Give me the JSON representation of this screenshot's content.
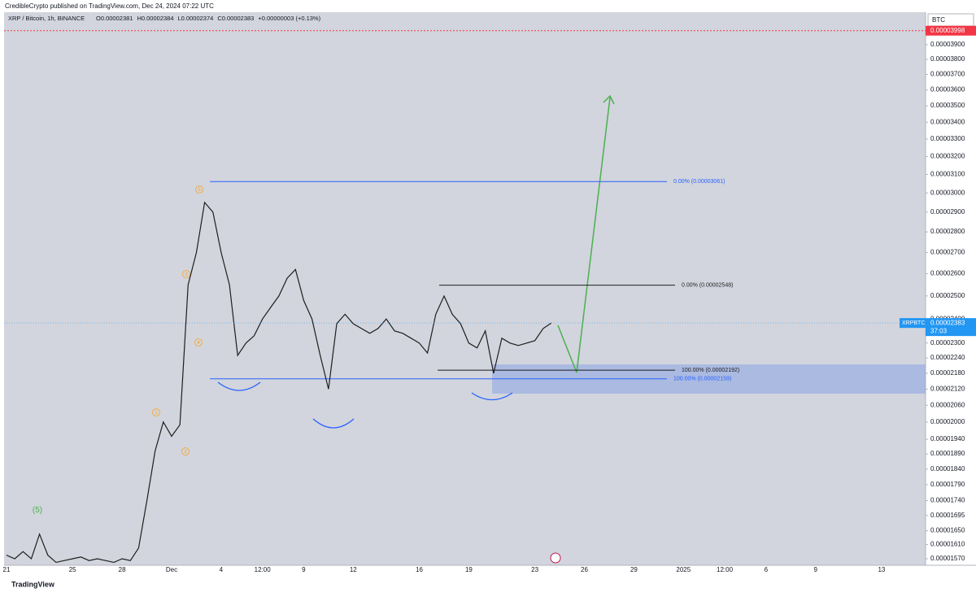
{
  "chart_data": {
    "type": "line",
    "published": "CredibleCrypto published on TradingView.com, Dec 24, 2024 07:22 UTC",
    "symbol_info": "XRP / Bitcoin, 1h, BINANCE",
    "ohlc": [
      "O0.00002381",
      "H0.00002384",
      "L0.00002374",
      "C0.00002383",
      "+0.00000003 (+0.13%)"
    ],
    "currency": "BTC",
    "brand": "TradingView",
    "color": "#1e1e1e",
    "log_scale": true,
    "categories": [
      "21",
      null,
      null,
      null,
      null,
      null,
      null,
      null,
      "25",
      null,
      null,
      null,
      null,
      null,
      "28",
      null,
      null,
      null,
      null,
      null,
      "Dec",
      null,
      null,
      null,
      null,
      null,
      "4",
      null,
      null,
      null,
      null,
      "12:00",
      null,
      null,
      null,
      null,
      "9",
      null,
      null,
      null,
      null,
      null,
      "12",
      null,
      null,
      null,
      null,
      null,
      null,
      null,
      "16",
      null,
      null,
      null,
      null,
      null,
      "19",
      null,
      null,
      null,
      null,
      null,
      null,
      null,
      "23",
      null,
      null,
      null,
      null,
      null,
      "26",
      null,
      null,
      null,
      null,
      null,
      "29",
      null,
      null,
      null,
      null,
      null,
      "2025",
      null,
      null,
      null,
      null,
      "12:00",
      null,
      null,
      null,
      null,
      "6",
      null,
      null,
      null,
      null,
      null,
      "9",
      null,
      null,
      null,
      null,
      null,
      null,
      null,
      "13",
      null,
      null,
      null,
      null,
      null
    ],
    "values": [
      1.58e-05,
      1.57e-05,
      1.59e-05,
      1.57e-05,
      1.64e-05,
      1.58e-05,
      1.56e-05,
      1.565e-05,
      1.57e-05,
      1.575e-05,
      1.565e-05,
      1.57e-05,
      1.565e-05,
      1.56e-05,
      1.57e-05,
      1.565e-05,
      1.6e-05,
      1.74e-05,
      1.9e-05,
      2e-05,
      1.95e-05,
      1.99e-05,
      2.55e-05,
      2.7e-05,
      2.95e-05,
      2.9e-05,
      2.7e-05,
      2.55e-05,
      2.25e-05,
      2.3e-05,
      2.33e-05,
      2.4e-05,
      2.45e-05,
      2.5e-05,
      2.58e-05,
      2.62e-05,
      2.48e-05,
      2.4e-05,
      2.25e-05,
      2.12e-05,
      2.38e-05,
      2.42e-05,
      2.38e-05,
      2.36e-05,
      2.34e-05,
      2.36e-05,
      2.4e-05,
      2.35e-05,
      2.34e-05,
      2.32e-05,
      2.3e-05,
      2.26e-05,
      2.42e-05,
      2.5e-05,
      2.42e-05,
      2.38e-05,
      2.3e-05,
      2.28e-05,
      2.35e-05,
      2.18e-05,
      2.32e-05,
      2.3e-05,
      2.29e-05,
      2.3e-05,
      2.31e-05,
      2.36e-05,
      2.383e-05,
      null,
      null,
      null,
      null,
      null,
      null,
      null,
      null,
      null,
      null,
      null,
      null,
      null,
      null,
      null,
      null,
      null,
      null,
      null,
      null,
      null,
      null,
      null,
      null,
      null,
      null,
      null,
      null,
      null,
      null,
      null,
      null,
      null,
      null,
      null,
      null,
      null,
      null,
      null,
      null,
      null,
      null,
      null,
      null,
      null
    ],
    "ylim": [
      1.552e-05,
      4.131e-05
    ],
    "yticks": [
      {
        "value": 3.9e-05,
        "label": "0.00003900"
      },
      {
        "value": 3.8e-05,
        "label": "0.00003800"
      },
      {
        "value": 3.7e-05,
        "label": "0.00003700"
      },
      {
        "value": 3.6e-05,
        "label": "0.00003600"
      },
      {
        "value": 3.5e-05,
        "label": "0.00003500"
      },
      {
        "value": 3.4e-05,
        "label": "0.00003400"
      },
      {
        "value": 3.3e-05,
        "label": "0.00003300"
      },
      {
        "value": 3.2e-05,
        "label": "0.00003200"
      },
      {
        "value": 3.1e-05,
        "label": "0.00003100"
      },
      {
        "value": 3e-05,
        "label": "0.00003000"
      },
      {
        "value": 2.9e-05,
        "label": "0.00002900"
      },
      {
        "value": 2.8e-05,
        "label": "0.00002800"
      },
      {
        "value": 2.7e-05,
        "label": "0.00002700"
      },
      {
        "value": 2.6e-05,
        "label": "0.00002600"
      },
      {
        "value": 2.5e-05,
        "label": "0.00002500"
      },
      {
        "value": 2.4e-05,
        "label": "0.00002400"
      },
      {
        "value": 2.3e-05,
        "label": "0.00002300"
      },
      {
        "value": 2.24e-05,
        "label": "0.00002240"
      },
      {
        "value": 2.18e-05,
        "label": "0.00002180"
      },
      {
        "value": 2.12e-05,
        "label": "0.00002120"
      },
      {
        "value": 2.06e-05,
        "label": "0.00002060"
      },
      {
        "value": 2e-05,
        "label": "0.00002000"
      },
      {
        "value": 1.94e-05,
        "label": "0.00001940"
      },
      {
        "value": 1.89e-05,
        "label": "0.00001890"
      },
      {
        "value": 1.84e-05,
        "label": "0.00001840"
      },
      {
        "value": 1.79e-05,
        "label": "0.00001790"
      },
      {
        "value": 1.74e-05,
        "label": "0.00001740"
      },
      {
        "value": 1.695e-05,
        "label": "0.00001695"
      },
      {
        "value": 1.65e-05,
        "label": "0.00001650"
      },
      {
        "value": 1.61e-05,
        "label": "0.00001610"
      },
      {
        "value": 1.57e-05,
        "label": "0.00001570"
      }
    ],
    "alert_line": {
      "value": 3.998e-05,
      "label": "0.00003998",
      "color": "#f23645"
    },
    "last_price": {
      "symbol": "XRPBTC",
      "value": 2.383e-05,
      "label": "0.00002383",
      "countdown": "37:03",
      "color": "#2196f3"
    },
    "levels": [
      {
        "value": 3.061e-05,
        "label": "0.00% (0.00003061)",
        "color": "#2962ff"
      },
      {
        "value": 2.548e-05,
        "label": "0.00% (0.00002548)",
        "color": "#1e1e1e"
      },
      {
        "value": 2.192e-05,
        "label": "100.00% (0.00002192)",
        "color": "#1e1e1e"
      },
      {
        "value": 2.159e-05,
        "label": "100.00% (0.00002159)",
        "color": "#2962ff"
      }
    ],
    "wave_labels": [
      "5",
      "3",
      "4",
      "1",
      "2",
      "(5)"
    ]
  }
}
